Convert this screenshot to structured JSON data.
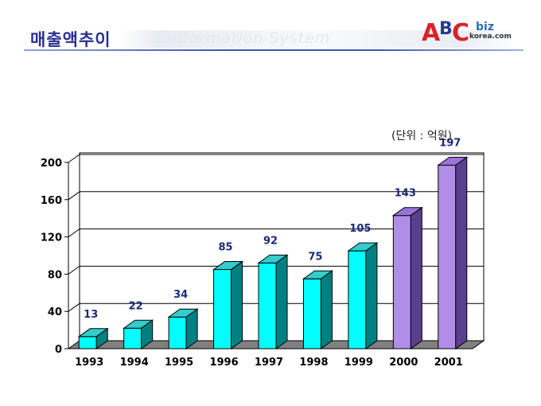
{
  "header": {
    "title": "매출액추이",
    "subtitle": "Information System",
    "logo": {
      "letter_a": "A",
      "letter_b": "B",
      "letter_c": "C",
      "biz": "biz",
      "domain": "korea.com"
    }
  },
  "unit_label": "(단위 : 억원)",
  "chart_data": {
    "type": "bar",
    "categories": [
      "1993",
      "1994",
      "1995",
      "1996",
      "1997",
      "1998",
      "1999",
      "2000",
      "2001"
    ],
    "values": [
      13,
      22,
      34,
      85,
      92,
      75,
      105,
      143,
      197
    ],
    "data_labels": [
      "13",
      "22",
      "34",
      "85",
      "92",
      "75",
      "105",
      "143",
      "197"
    ],
    "title": "",
    "xlabel": "",
    "ylabel": "",
    "ylim": [
      0,
      200
    ],
    "yticks": [
      0,
      40,
      80,
      120,
      160,
      200
    ],
    "ytick_labels": [
      "0",
      "40",
      "80",
      "120",
      "160",
      "200"
    ],
    "grid": true,
    "style": "3d-bars",
    "colors": {
      "cyan_front": "#00ffff",
      "cyan_top": "#33cccc",
      "cyan_side": "#008080",
      "purple_front": "#b08ee8",
      "purple_top": "#9b73d8",
      "purple_side": "#5a3f8e",
      "label_color": "#1b2a7a",
      "floor": "#808080"
    },
    "purple_from_index": 7
  }
}
